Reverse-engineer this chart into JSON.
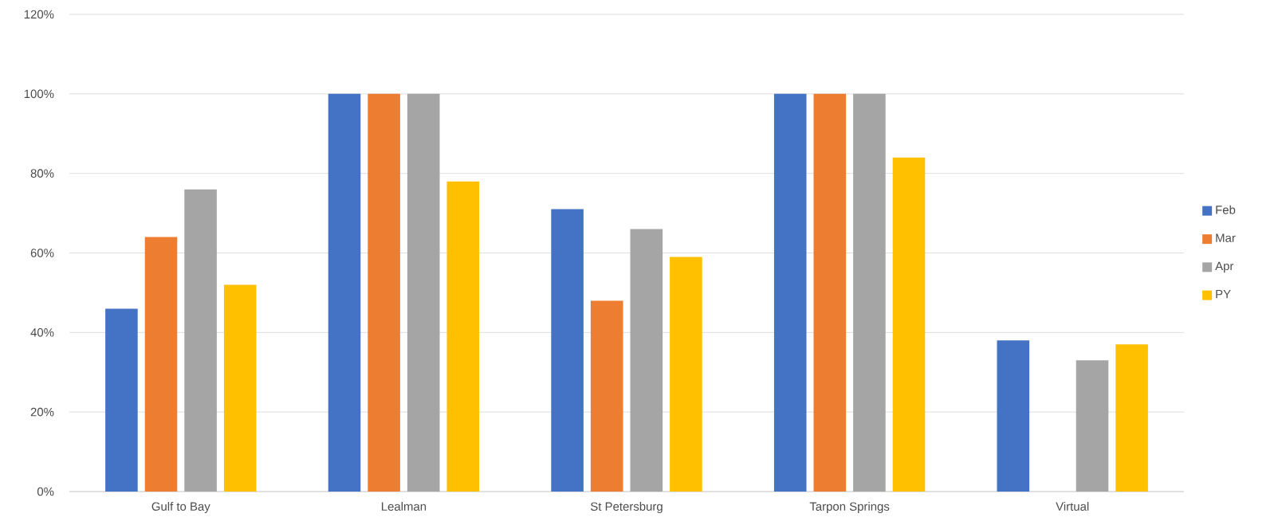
{
  "chart_data": {
    "type": "bar",
    "categories": [
      "Gulf to Bay",
      "Lealman",
      "St Petersburg",
      "Tarpon Springs",
      "Virtual"
    ],
    "series": [
      {
        "name": "Feb",
        "color": "#4472c4",
        "values": [
          46,
          100,
          71,
          100,
          38
        ]
      },
      {
        "name": "Mar",
        "color": "#ed7d31",
        "values": [
          64,
          100,
          48,
          100,
          null
        ]
      },
      {
        "name": "Apr",
        "color": "#a5a5a5",
        "values": [
          76,
          100,
          66,
          100,
          33
        ]
      },
      {
        "name": "PY",
        "color": "#ffc000",
        "values": [
          52,
          78,
          59,
          84,
          37
        ]
      }
    ],
    "ylim": [
      0,
      120
    ],
    "yticks": [
      {
        "value": 0,
        "label": "0%"
      },
      {
        "value": 20,
        "label": "20%"
      },
      {
        "value": 40,
        "label": "40%"
      },
      {
        "value": 60,
        "label": "60%"
      },
      {
        "value": 80,
        "label": "80%"
      },
      {
        "value": 100,
        "label": "100%"
      },
      {
        "value": 120,
        "label": "120%"
      }
    ],
    "grid": "y",
    "legend": "right"
  }
}
